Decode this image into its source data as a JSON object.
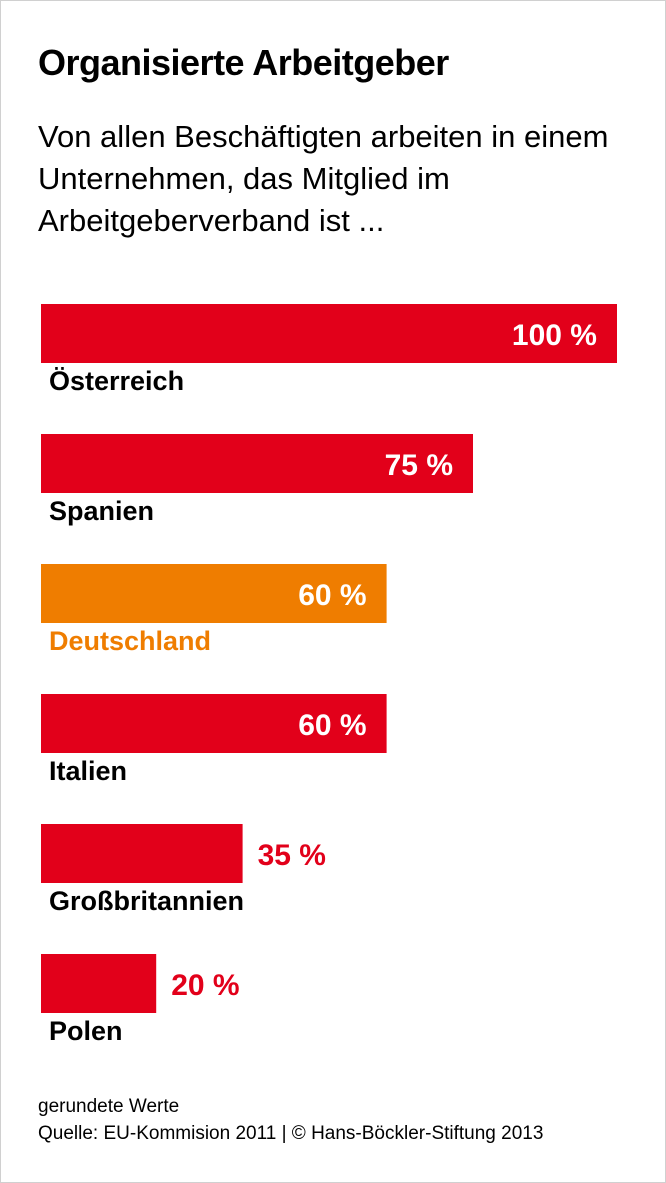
{
  "chart_data": {
    "type": "bar",
    "orientation": "horizontal",
    "title": "Organisierte Arbeitgeber",
    "subtitle": "Von allen Beschäftigten arbeiten in einem Unternehmen, das Mitglied im Arbeitgeberverband ist ...",
    "categories": [
      "Österreich",
      "Spanien",
      "Deutschland",
      "Italien",
      "Großbritannien",
      "Polen"
    ],
    "values": [
      100,
      75,
      60,
      60,
      35,
      20
    ],
    "value_labels": [
      "100 %",
      "75 %",
      "60 %",
      "60 %",
      "35 %",
      "20 %"
    ],
    "highlight": "Deutschland",
    "unit": "%",
    "xlim": [
      0,
      100
    ]
  },
  "colors": {
    "bar": "#e2001a",
    "highlight": "#ef7d00",
    "label_on_bar": "#ffffff",
    "label_outside": "#e2001a",
    "category_text": "#000000"
  },
  "footer": {
    "note": "gerundete Werte",
    "source": "Quelle: EU-Kommision 2011 | © Hans-Böckler-Stiftung 2013"
  }
}
